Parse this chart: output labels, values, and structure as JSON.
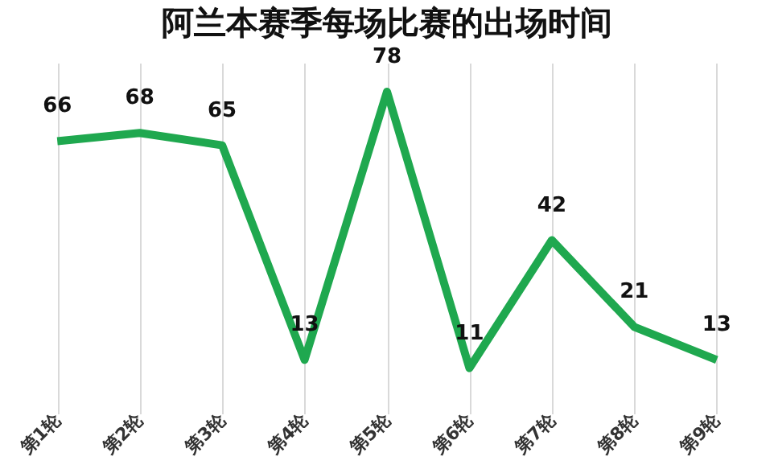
{
  "chart_data": {
    "type": "line",
    "title": "阿兰本赛季每场比赛的出场时间",
    "categories": [
      "第1轮",
      "第2轮",
      "第3轮",
      "第4轮",
      "第5轮",
      "第6轮",
      "第7轮",
      "第8轮",
      "第9轮"
    ],
    "series": [
      {
        "color": "#1fa84f",
        "values": [
          66,
          68,
          65,
          13,
          78,
          11,
          42,
          21,
          13
        ]
      }
    ],
    "ylim": [
      0,
      85
    ],
    "tick_labels": "x",
    "grid": "x",
    "data_labels": true,
    "marker": "none",
    "line_style": "solid"
  }
}
